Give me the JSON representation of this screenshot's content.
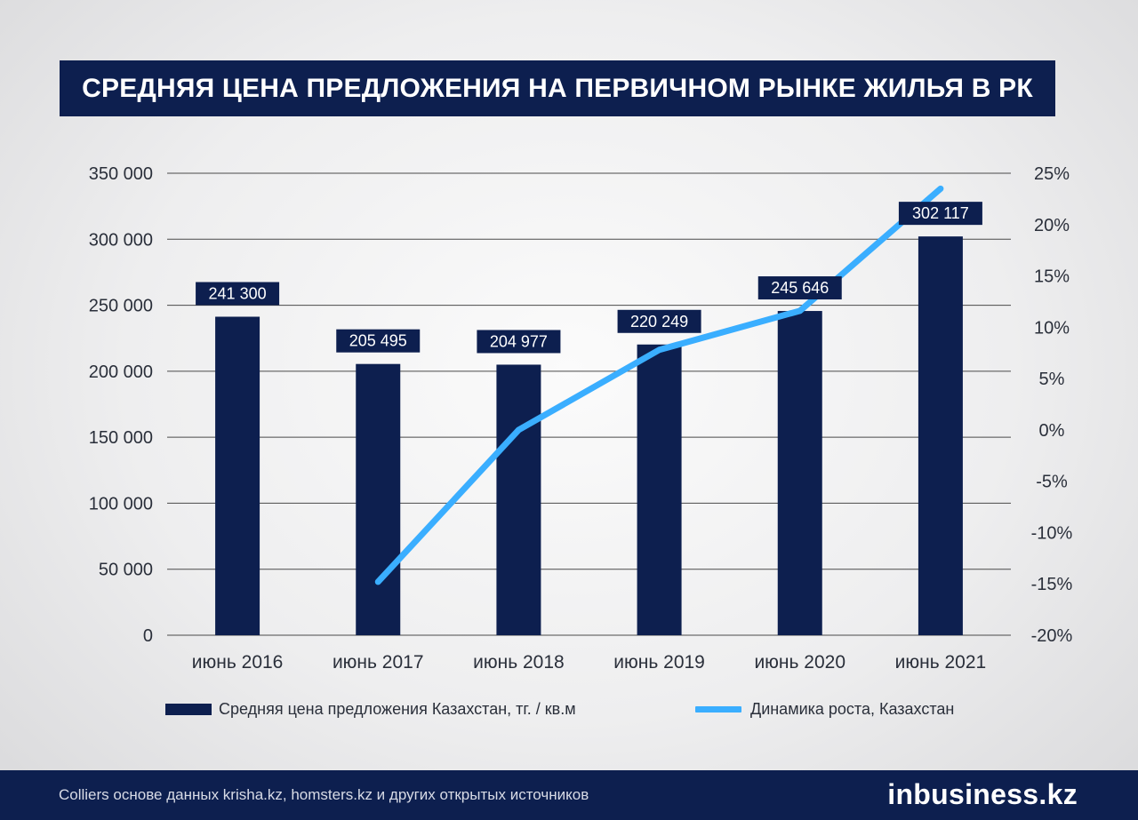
{
  "title": "СРЕДНЯЯ ЦЕНА ПРЕДЛОЖЕНИЯ НА ПЕРВИЧНОМ РЫНКЕ ЖИЛЬЯ В РК",
  "chart_data": {
    "type": "bar",
    "categories": [
      "июнь 2016",
      "июнь 2017",
      "июнь 2018",
      "июнь 2019",
      "июнь 2020",
      "июнь 2021"
    ],
    "series": [
      {
        "name": "Средняя цена предложения Казахстан, тг. / кв.м",
        "type": "bar",
        "axis": "left",
        "values": [
          241300,
          205495,
          204977,
          220249,
          245646,
          302117
        ],
        "data_labels": [
          "241 300",
          "205 495",
          "204 977",
          "220 249",
          "245 646",
          "302 117"
        ]
      },
      {
        "name": "Динамика роста, Казахстан",
        "type": "line",
        "axis": "right",
        "values": [
          null,
          -14.8,
          0.0,
          7.8,
          11.6,
          23.5
        ]
      }
    ],
    "y_left": {
      "range": [
        0,
        350000
      ],
      "ticks": [
        0,
        50000,
        100000,
        150000,
        200000,
        250000,
        300000,
        350000
      ],
      "tick_labels": [
        "0",
        "50 000",
        "100 000",
        "150 000",
        "200 000",
        "250 000",
        "300 000",
        "350 000"
      ]
    },
    "y_right": {
      "range": [
        -20,
        25
      ],
      "ticks": [
        -20,
        -15,
        -10,
        -5,
        0,
        5,
        10,
        15,
        20,
        25
      ],
      "tick_labels": [
        "-20%",
        "-15%",
        "-10%",
        "-5%",
        "0%",
        "5%",
        "10%",
        "15%",
        "20%",
        "25%"
      ]
    },
    "grid": true,
    "legend_position": "bottom",
    "colors": {
      "bar": "#0d1f4f",
      "line": "#3aaeff",
      "grid": "#4a4a4a"
    }
  },
  "legend": {
    "bar_label": "Средняя цена предложения Казахстан, тг. / кв.м",
    "line_label": "Динамика роста, Казахстан"
  },
  "footer": {
    "source": "Colliers основе данных krisha.kz, homsters.kz и других открытых источников",
    "logo": "inbusiness.kz"
  }
}
